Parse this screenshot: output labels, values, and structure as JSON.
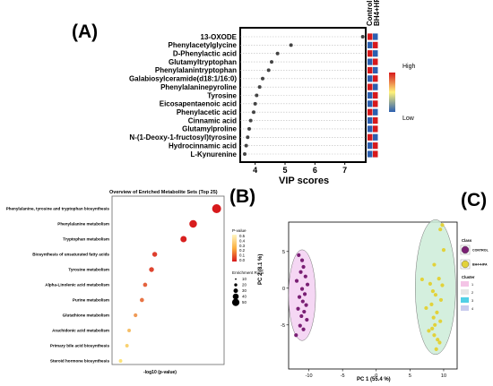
{
  "panel_labels": {
    "a": "(A)",
    "b": "(B)",
    "c": "(C)"
  },
  "chart_data": [
    {
      "id": "A",
      "type": "scatter",
      "xlabel": "VIP scores",
      "x_ticks": [
        4,
        5,
        6,
        7
      ],
      "xlim": [
        3.5,
        7.7
      ],
      "categories": [
        "13-OXODE",
        "Phenylacetylglycine",
        "D-Phenylactic acid",
        "Glutamyltryptophan",
        "Phenylalanintryptophan",
        "Galabiosylceramide(d18:1/16:0)",
        "Phenylalaninepyroline",
        "Tyrosine",
        "Eicosapentaenoic acid",
        "Phenylacetic acid",
        "Cinnamic acid",
        "Glutamylproline",
        "N-(1-Deoxy-1-fructosyl)tyrosine",
        "Hydrocinnamic acid",
        "L-Kynurenine"
      ],
      "values": [
        7.6,
        5.2,
        4.75,
        4.55,
        4.45,
        4.25,
        4.15,
        4.05,
        4.0,
        3.95,
        3.85,
        3.8,
        3.75,
        3.7,
        3.65
      ],
      "heatmap_columns": [
        "Control",
        "BH4+HPA"
      ],
      "heatmap_legend": {
        "high": "High",
        "low": "Low"
      },
      "colors": {
        "high": "#d7191c",
        "low": "#2c5fb0",
        "dot": "#444444"
      }
    },
    {
      "id": "B",
      "type": "scatter",
      "title": "Overview of Enriched Metabolite Sets (Top 25)",
      "xlabel": "-log10 (p-value)",
      "categories": [
        "Phenylalanine, tyrosine and tryptophan biosynthesis",
        "Phenylalanine metabolism",
        "Tryptophan metabolism",
        "Biosynthesis of unsaturated fatty acids",
        "Tyrosine metabolism",
        "Alpha-Linolenic acid metabolism",
        "Purine metabolism",
        "Glutathione metabolism",
        "Arachidonic acid metabolism",
        "Primary bile acid biosynthesis",
        "Steroid hormone biosynthesis"
      ],
      "values": [
        9.8,
        7.6,
        6.7,
        4.0,
        3.7,
        3.1,
        2.8,
        2.2,
        1.6,
        1.4,
        0.8
      ],
      "pvalue": [
        0.0,
        0.01,
        0.02,
        0.1,
        0.12,
        0.2,
        0.25,
        0.35,
        0.45,
        0.5,
        0.55
      ],
      "enrichment_ratio": [
        50,
        40,
        30,
        20,
        20,
        15,
        15,
        12,
        10,
        10,
        10
      ],
      "legend": {
        "pvalue_title": "P-value",
        "pvalue_ticks": [
          "0.5",
          "0.4",
          "0.3",
          "0.2",
          "0.1",
          "0.0"
        ],
        "ratio_title": "Enrichment Ratio",
        "ratio_ticks": [
          "10",
          "20",
          "30",
          "40",
          "50"
        ]
      }
    },
    {
      "id": "C",
      "type": "scatter",
      "xlabel": "PC 1 (55.4 %)",
      "ylabel": "PC 2 (8.1 %)",
      "x_ticks": [
        -10,
        -5,
        0,
        5,
        10
      ],
      "y_ticks": [
        -5,
        0,
        5
      ],
      "xlim": [
        -13,
        12
      ],
      "ylim": [
        -11,
        9
      ],
      "series": [
        {
          "name": "CONTROL",
          "color": "#7a1f74",
          "ellipse": "#f3d0f2",
          "x": [
            -11.5,
            -11,
            -10.8,
            -11.2,
            -10.5,
            -11.8,
            -10.2,
            -11,
            -10.6,
            -11.4,
            -10.9,
            -10.4,
            -11.6,
            -10.7,
            -11.1,
            -10.3,
            -11.3,
            -10.8,
            -11.9
          ],
          "y": [
            4.5,
            3.8,
            2.9,
            2.2,
            1.6,
            1.0,
            0.5,
            -0.1,
            -0.8,
            -1.2,
            -1.8,
            -2.3,
            -2.8,
            -3.2,
            -3.8,
            -4.3,
            -5.1,
            -5.6,
            -6.4
          ]
        },
        {
          "name": "BH4+HPA",
          "color": "#e2d23a",
          "ellipse": "#ccecd8",
          "x": [
            9.8,
            9.5,
            10.0,
            8.6,
            6.8,
            9.3,
            8.0,
            9.8,
            8.4,
            8.8,
            9.6,
            8.2,
            7.4,
            9.0,
            8.5,
            9.5,
            8.7,
            8.3,
            7.8,
            8.6,
            9.1,
            9.4,
            8.9
          ],
          "y": [
            8.6,
            8.0,
            5.2,
            3.2,
            1.2,
            1.3,
            0.6,
            0.4,
            -0.4,
            -0.9,
            -1.6,
            -2.2,
            -2.7,
            -3.3,
            -4.0,
            -4.5,
            -5.0,
            -5.5,
            -5.8,
            -6.4,
            -7.0,
            -7.4,
            -8.3
          ]
        }
      ],
      "legend": {
        "class_title": "Class",
        "cluster_title": "Cluster",
        "cluster_items": [
          "1",
          "2",
          "3",
          "4"
        ],
        "cluster_colors": [
          "#f4c4e6",
          "#e6e6e6",
          "#52d0e6",
          "#c8cbee"
        ]
      }
    }
  ]
}
